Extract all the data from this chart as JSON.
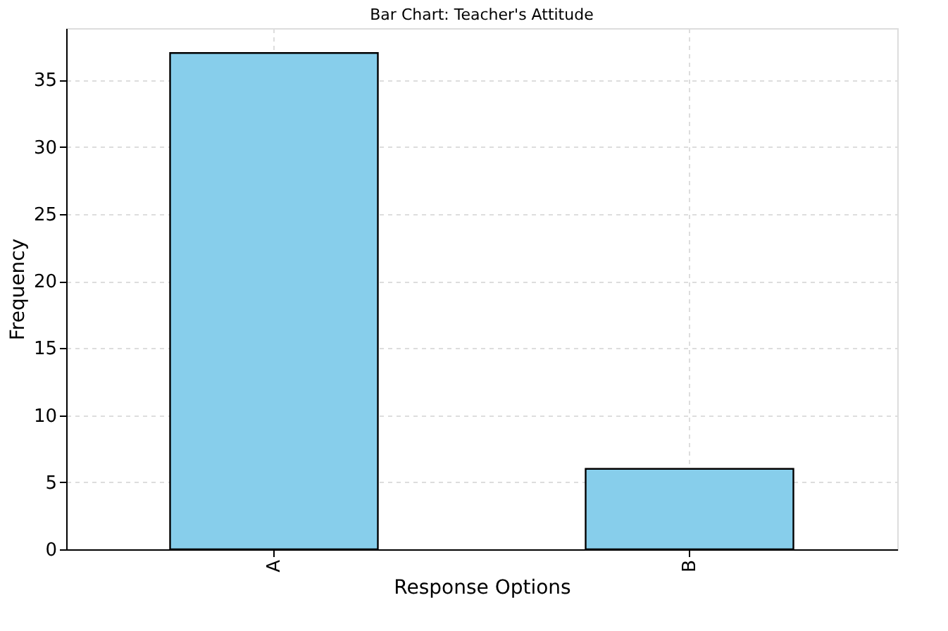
{
  "chart_data": {
    "type": "bar",
    "title": "Bar Chart: Teacher's Attitude",
    "xlabel": "Response Options",
    "ylabel": "Frequency",
    "categories": [
      "A",
      "B"
    ],
    "values": [
      37,
      6
    ],
    "color": "#87ceeb",
    "ylim": [
      0,
      38.85
    ],
    "yticks": [
      0,
      5,
      10,
      15,
      20,
      25,
      30,
      35
    ],
    "grid": true
  }
}
